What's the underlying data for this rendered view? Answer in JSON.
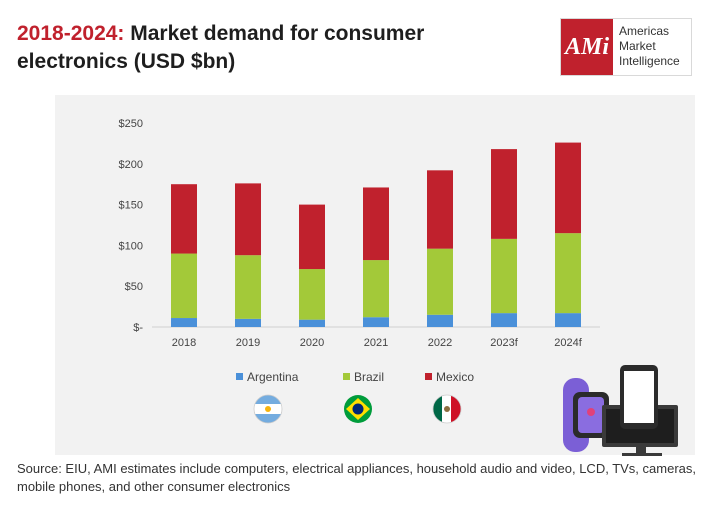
{
  "title": {
    "years": "2018-2024:",
    "rest": " Market demand for consumer electronics (USD $bn)"
  },
  "logo": {
    "mark": "AMi",
    "line1": "Americas",
    "line2": "Market",
    "line3": "Intelligence"
  },
  "source": "Source: EIU, AMI estimates include computers, electrical appliances, household audio and video, LCD, TVs, cameras, mobile phones, and other consumer electronics",
  "chart_data": {
    "type": "bar",
    "stacked": true,
    "title": "Market demand for consumer electronics (USD $bn)",
    "categories": [
      "2018",
      "2019",
      "2020",
      "2021",
      "2022",
      "2023f",
      "2024f"
    ],
    "series": [
      {
        "name": "Argentina",
        "color": "#4a90d9",
        "values": [
          11,
          10,
          9,
          12,
          15,
          17,
          17
        ]
      },
      {
        "name": "Brazil",
        "color": "#a3c939",
        "values": [
          79,
          78,
          62,
          70,
          81,
          91,
          98
        ]
      },
      {
        "name": "Mexico",
        "color": "#c0212d",
        "values": [
          85,
          88,
          79,
          89,
          96,
          110,
          111
        ]
      }
    ],
    "ylim": [
      0,
      250
    ],
    "yticks": [
      0,
      50,
      100,
      150,
      200,
      250
    ],
    "ytick_labels": [
      "$-",
      "$50",
      "$100",
      "$150",
      "$200",
      "$250"
    ],
    "legend_position": "bottom"
  }
}
